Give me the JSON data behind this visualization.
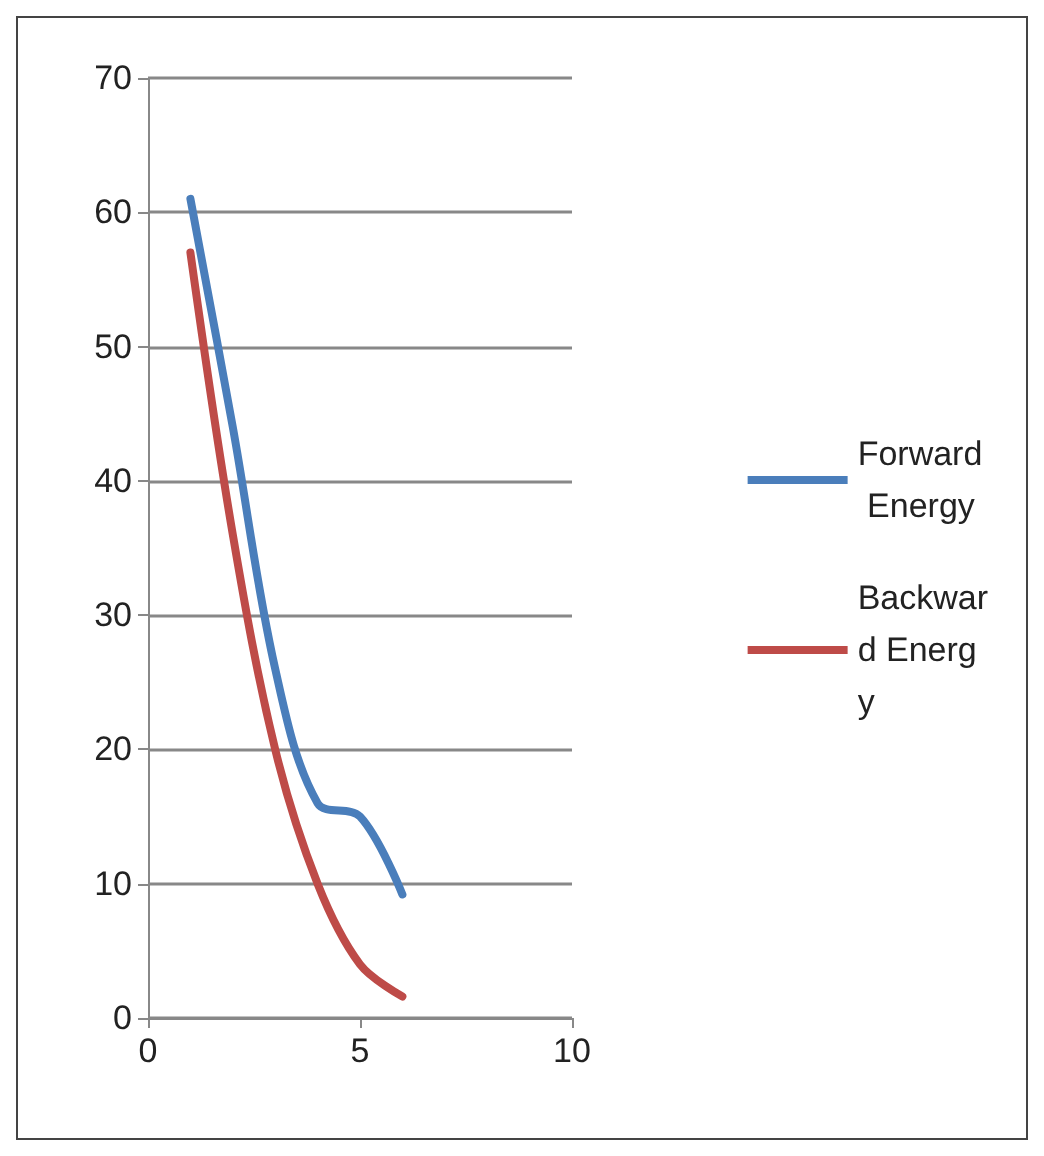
{
  "chart_data": {
    "type": "line",
    "x": [
      1,
      2,
      3,
      4,
      5,
      6
    ],
    "series": [
      {
        "name": "Forward Energy",
        "color": "#4a7ebb",
        "values": [
          61,
          44,
          26,
          16,
          15,
          9.2
        ]
      },
      {
        "name": "Backward Energy",
        "color": "#be4b48",
        "values": [
          57,
          36,
          20,
          10,
          4,
          1.6
        ]
      }
    ],
    "xlim": [
      0,
      10
    ],
    "xticks": [
      0,
      5,
      10
    ],
    "ylim": [
      0,
      70
    ],
    "yticks": [
      0,
      10,
      20,
      30,
      40,
      50,
      60,
      70
    ],
    "grid": "y",
    "legend": "right",
    "marker": "none",
    "line_style": "solid"
  }
}
